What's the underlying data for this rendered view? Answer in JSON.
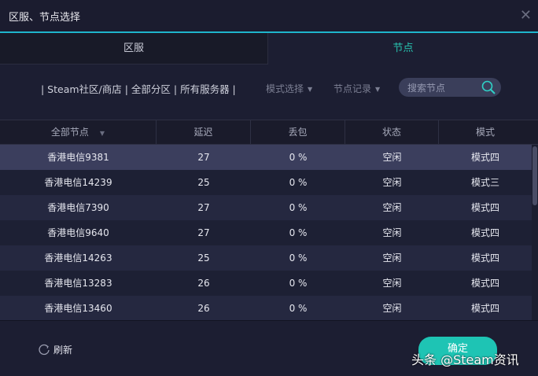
{
  "window": {
    "title": "区服、节点选择"
  },
  "tabs": [
    {
      "label": "区服",
      "active": false
    },
    {
      "label": "节点",
      "active": true
    }
  ],
  "breadcrumb": "| Steam社区/商店 | 全部分区 | 所有服务器 |",
  "filters": {
    "mode_select": "模式选择",
    "node_history": "节点记录"
  },
  "search": {
    "placeholder": "搜索节点",
    "icon": "search-icon"
  },
  "table": {
    "headers": [
      "全部节点",
      "延迟",
      "丢包",
      "状态",
      "模式"
    ],
    "rows": [
      {
        "name": "香港电信9381",
        "latency": "27",
        "loss": "0 %",
        "status": "空闲",
        "mode": "模式四"
      },
      {
        "name": "香港电信14239",
        "latency": "25",
        "loss": "0 %",
        "status": "空闲",
        "mode": "模式三"
      },
      {
        "name": "香港电信7390",
        "latency": "27",
        "loss": "0 %",
        "status": "空闲",
        "mode": "模式四"
      },
      {
        "name": "香港电信9640",
        "latency": "27",
        "loss": "0 %",
        "status": "空闲",
        "mode": "模式四"
      },
      {
        "name": "香港电信14263",
        "latency": "25",
        "loss": "0 %",
        "status": "空闲",
        "mode": "模式四"
      },
      {
        "name": "香港电信13283",
        "latency": "26",
        "loss": "0 %",
        "status": "空闲",
        "mode": "模式四"
      },
      {
        "name": "香港电信13460",
        "latency": "26",
        "loss": "0 %",
        "status": "空闲",
        "mode": "模式四"
      }
    ]
  },
  "footer": {
    "refresh": "刷新",
    "confirm": "确定"
  },
  "watermark": "头条 @Steam资讯",
  "colors": {
    "accent": "#1fb5cc",
    "active_tab": "#28c3b0",
    "confirm": "#1ec4b4"
  }
}
